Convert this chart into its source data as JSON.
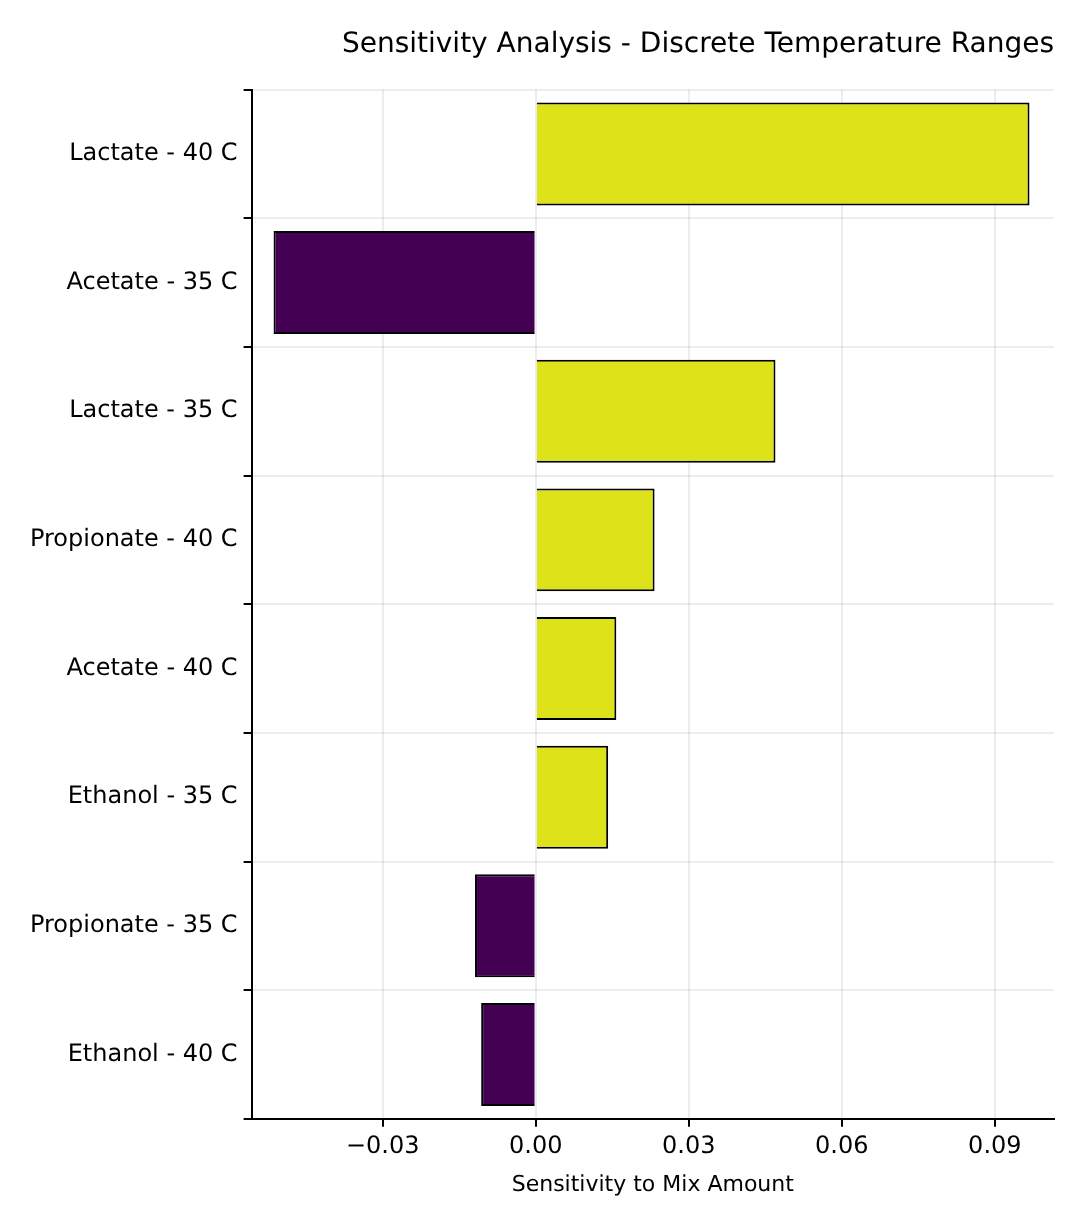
{
  "chart_data": {
    "type": "bar",
    "orientation": "horizontal",
    "title": "Sensitivity Analysis - Discrete Temperature Ranges",
    "xlabel": "Sensitivity to Mix Amount",
    "categories": [
      "Lactate - 40 C",
      "Acetate - 35 C",
      "Lactate - 35 C",
      "Propionate - 40 C",
      "Acetate - 40 C",
      "Ethanol - 35 C",
      "Propionate - 35 C",
      "Ethanol - 40 C"
    ],
    "values": [
      0.0968,
      -0.0514,
      0.047,
      0.0233,
      0.0158,
      0.0142,
      -0.0119,
      -0.0107
    ],
    "colors": [
      "#dde318",
      "#440154",
      "#dde318",
      "#dde318",
      "#dde318",
      "#dde318",
      "#440154",
      "#440154"
    ],
    "xlim": [
      -0.0557,
      0.1016
    ],
    "xticks": [
      {
        "value": -0.03,
        "label": "−0.03"
      },
      {
        "value": 0,
        "label": "0.00"
      },
      {
        "value": 0.03,
        "label": "0.03"
      },
      {
        "value": 0.06,
        "label": "0.06"
      },
      {
        "value": 0.09,
        "label": "0.09"
      }
    ],
    "grid": true,
    "legend": false
  }
}
